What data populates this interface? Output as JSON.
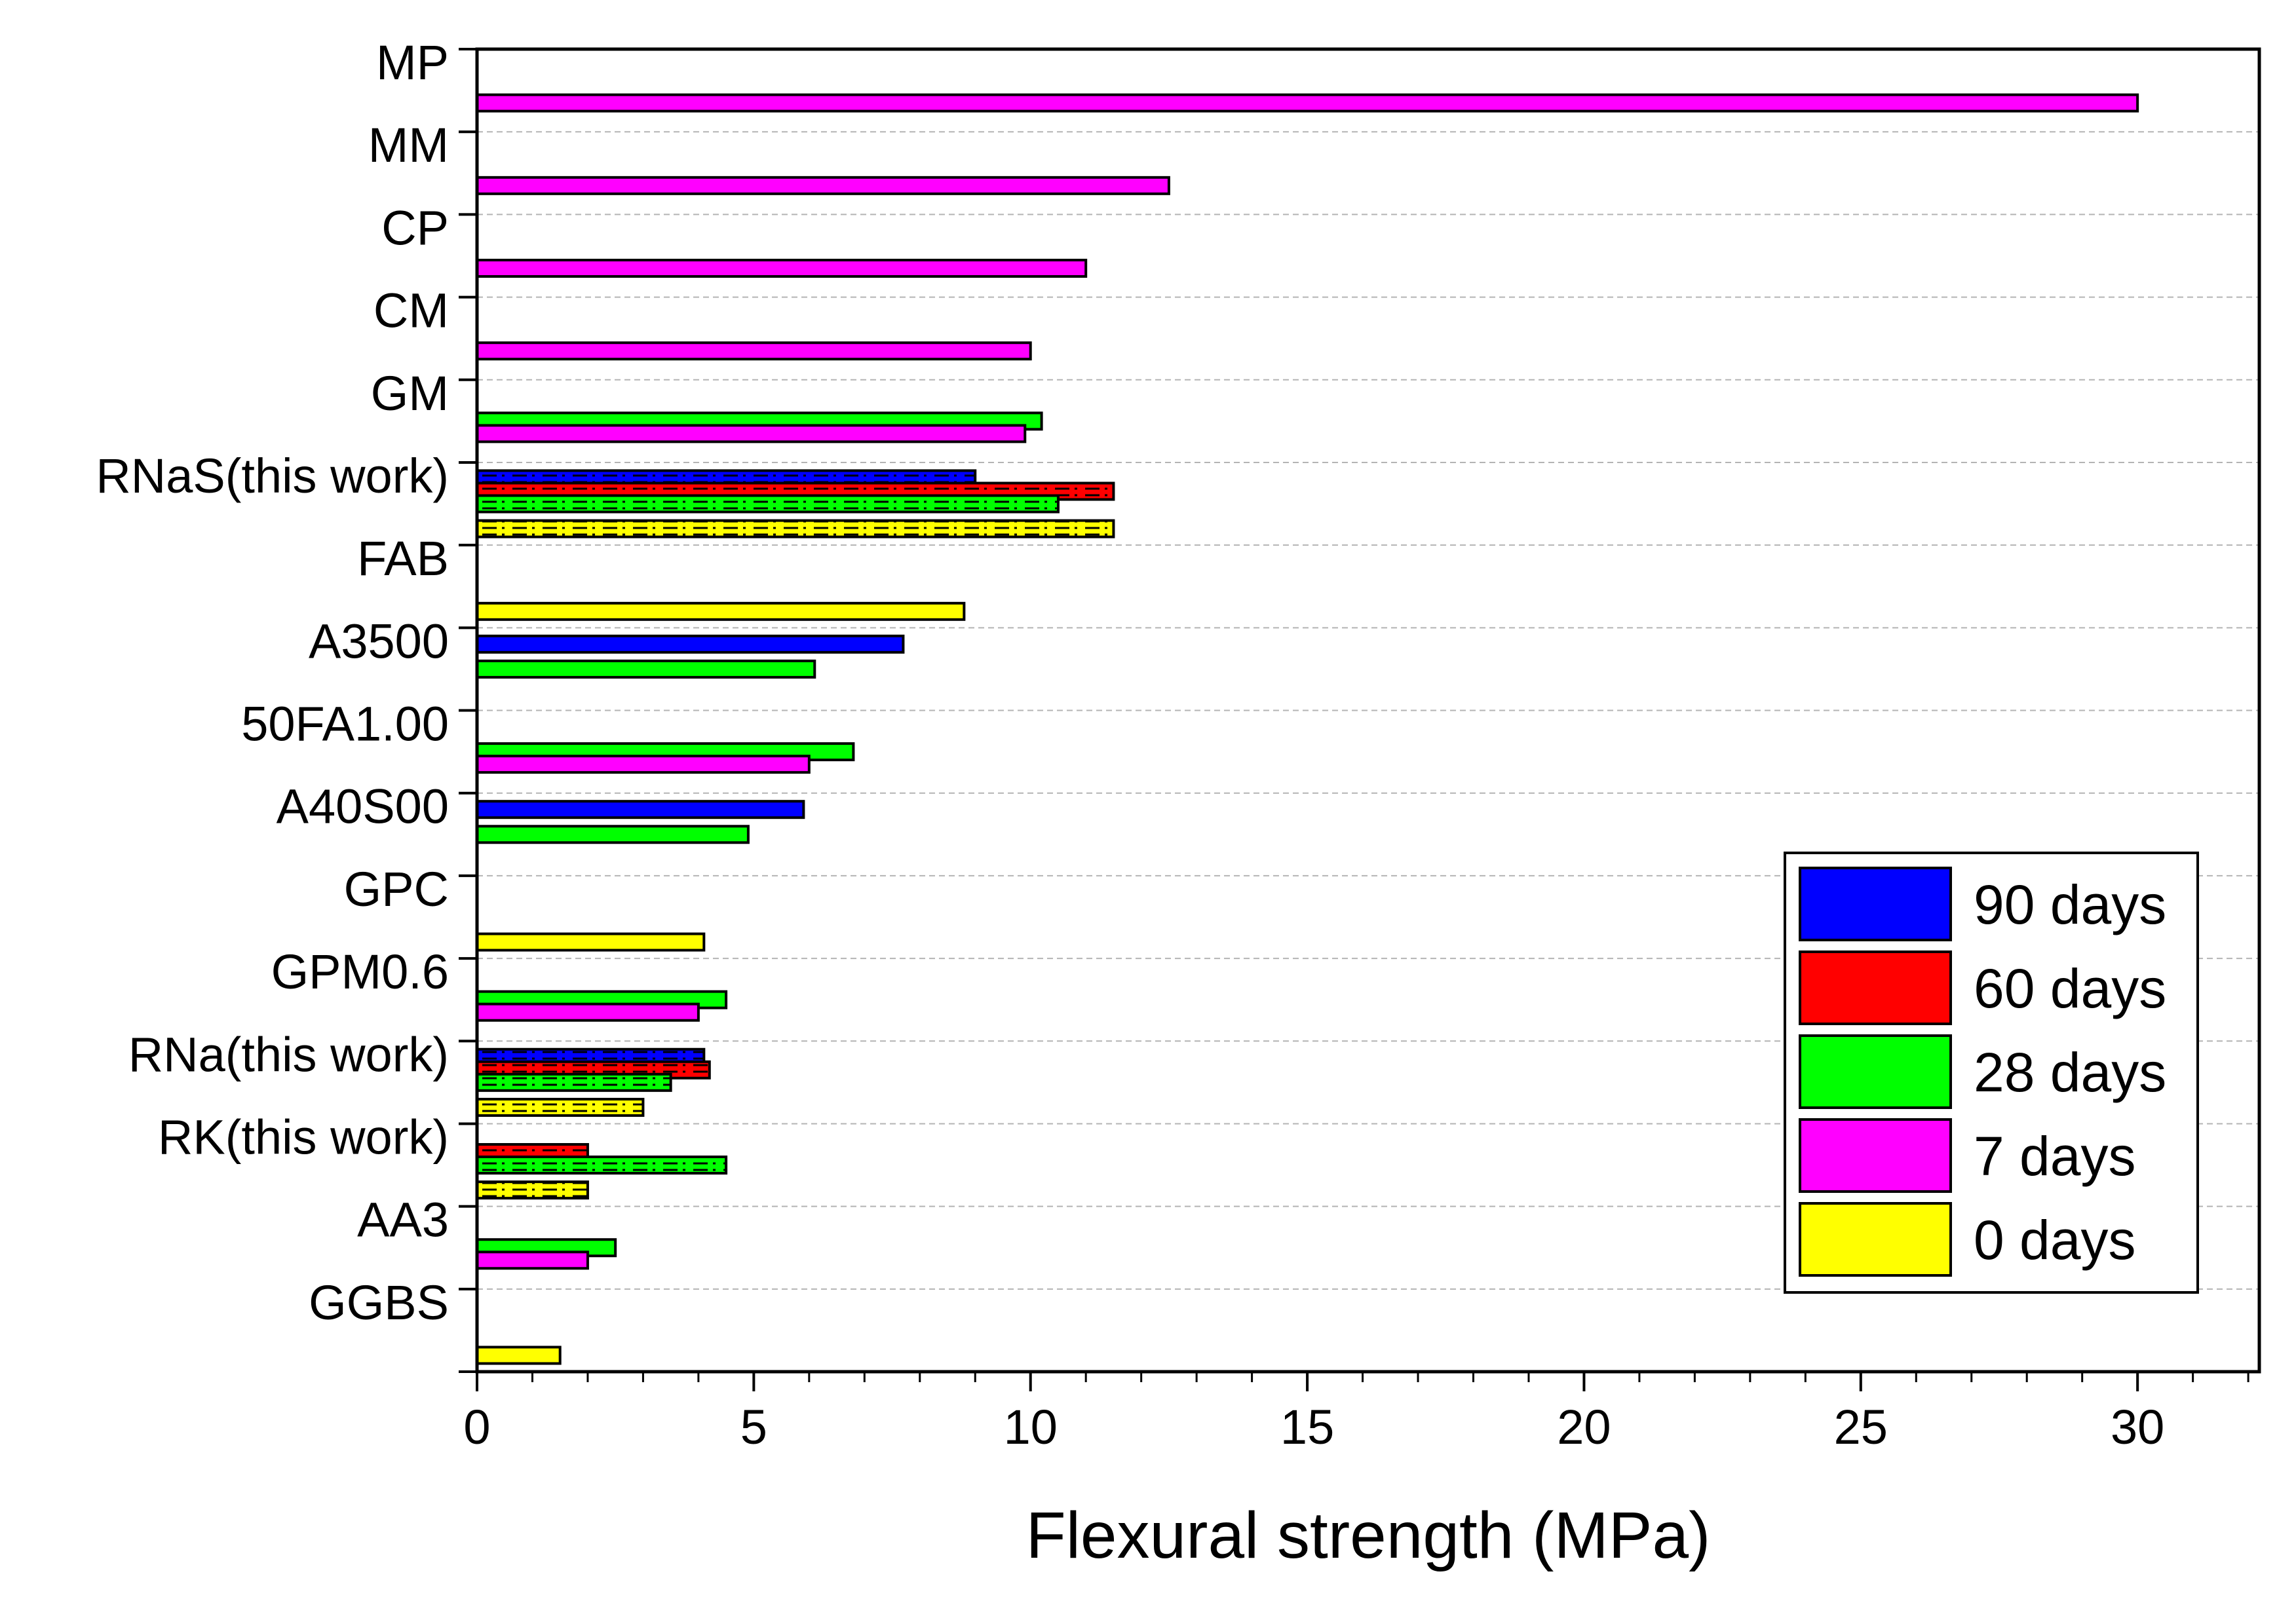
{
  "chart_data": {
    "type": "bar",
    "orientation": "horizontal",
    "xlabel": "Flexural strength (MPa)",
    "ylabel": "",
    "xlim": [
      0,
      32.2
    ],
    "xticks": [
      "0",
      "5",
      "10",
      "15",
      "20",
      "25",
      "30"
    ],
    "grid": "horizontal dashed separators between categories",
    "legend_position": "bottom-right",
    "categories": [
      "MP",
      "MM",
      "CP",
      "CM",
      "GM",
      "RNaS(this work)",
      "FAB",
      "A3500",
      "50FA1.00",
      "A40S00",
      "GPC",
      "GPM0.6",
      "RNa(this work)",
      "RK(this work)",
      "AA3",
      "GGBS"
    ],
    "series": [
      {
        "name": "90 days",
        "color": "#0000ff",
        "values": [
          null,
          null,
          null,
          null,
          null,
          9.0,
          null,
          7.7,
          null,
          5.9,
          null,
          null,
          4.1,
          null,
          null,
          null
        ]
      },
      {
        "name": "60 days",
        "color": "#ff0000",
        "values": [
          null,
          null,
          null,
          null,
          null,
          11.5,
          null,
          null,
          null,
          null,
          null,
          null,
          4.2,
          2.0,
          null,
          null
        ]
      },
      {
        "name": "28 days",
        "color": "#00ff00",
        "values": [
          null,
          null,
          null,
          null,
          10.2,
          10.5,
          null,
          6.1,
          6.8,
          4.9,
          null,
          4.5,
          3.5,
          4.5,
          2.5,
          null
        ]
      },
      {
        "name": "7 days",
        "color": "#ff00ff",
        "values": [
          30.0,
          12.5,
          11.0,
          10.0,
          9.9,
          null,
          null,
          null,
          6.0,
          null,
          null,
          4.0,
          null,
          null,
          2.0,
          null
        ]
      },
      {
        "name": "0 days",
        "color": "#ffff00",
        "values": [
          null,
          null,
          null,
          null,
          null,
          11.5,
          8.8,
          null,
          null,
          null,
          4.1,
          null,
          3.0,
          2.0,
          null,
          1.5
        ]
      }
    ],
    "hatched_categories": [
      "RNaS(this work)",
      "RNa(this work)",
      "RK(this work)"
    ]
  }
}
